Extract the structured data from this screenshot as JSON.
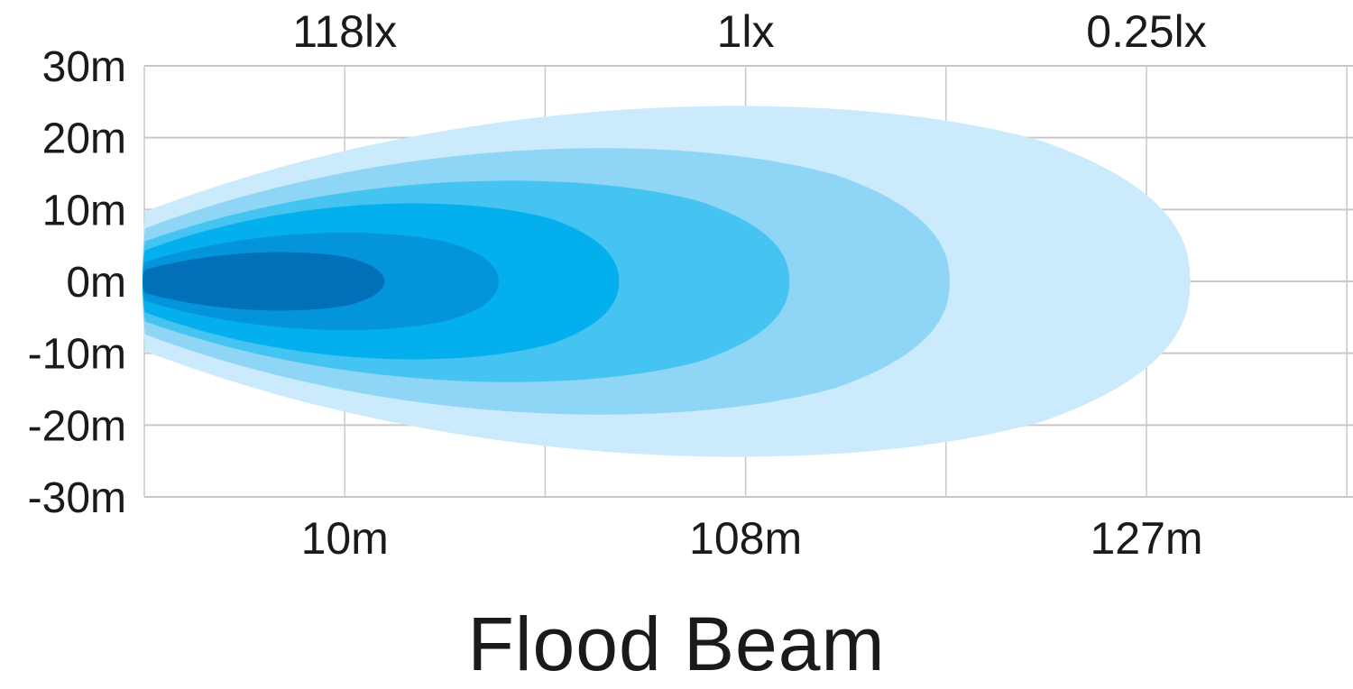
{
  "chart_data": {
    "type": "area",
    "title": "Flood Beam",
    "xlabel": "",
    "ylabel": "",
    "grid": true,
    "ylim": [
      -30,
      30
    ],
    "y_ticks": [
      "30m",
      "20m",
      "10m",
      "0m",
      "-10m",
      "-20m",
      "-30m"
    ],
    "y_tick_values": [
      30,
      20,
      10,
      0,
      -10,
      -20,
      -30
    ],
    "x_grid_count": 6,
    "distance_labels": [
      {
        "label": "10m",
        "grid_index": 1
      },
      {
        "label": "108m",
        "grid_index": 3
      },
      {
        "label": "127m",
        "grid_index": 5
      }
    ],
    "lux_labels": [
      {
        "label": "118lx",
        "grid_index": 1
      },
      {
        "label": "1lx",
        "grid_index": 3
      },
      {
        "label": "0.25lx",
        "grid_index": 5
      }
    ],
    "series": [
      {
        "reach_grid_units": 5.2,
        "half_width": 27,
        "color": "#cbeafb"
      },
      {
        "reach_grid_units": 4.0,
        "half_width": 20.5,
        "color": "#8fd5f6"
      },
      {
        "reach_grid_units": 3.2,
        "half_width": 15.5,
        "color": "#45c4f1"
      },
      {
        "reach_grid_units": 2.35,
        "half_width": 12,
        "color": "#04afee"
      },
      {
        "reach_grid_units": 1.75,
        "half_width": 7.5,
        "color": "#0494d9"
      },
      {
        "reach_grid_units": 1.18,
        "half_width": 4.5,
        "color": "#0270b8"
      }
    ],
    "colors": {
      "grid": "#c8c8c8",
      "axis_text": "#1a1a1a",
      "background": "#ffffff"
    }
  }
}
